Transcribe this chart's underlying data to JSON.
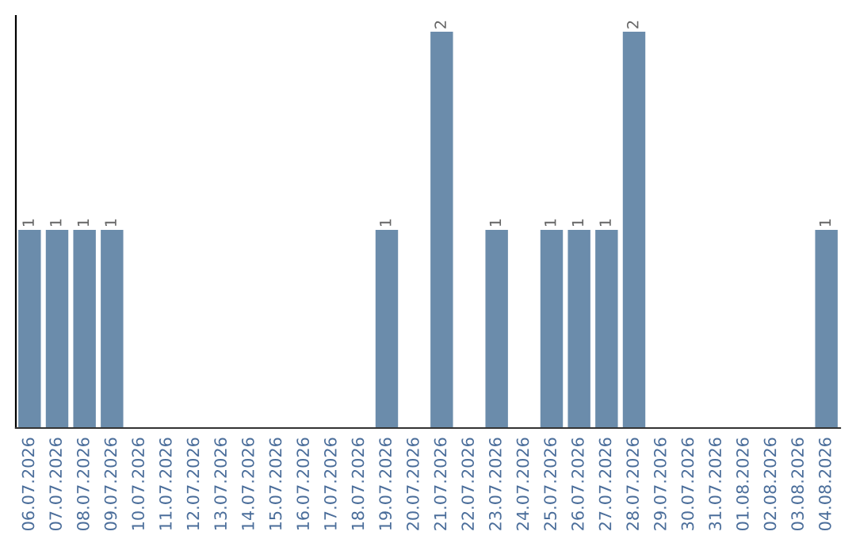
{
  "chart_data": {
    "type": "bar",
    "categories": [
      "06.07.2026",
      "07.07.2026",
      "08.07.2026",
      "09.07.2026",
      "10.07.2026",
      "11.07.2026",
      "12.07.2026",
      "13.07.2026",
      "14.07.2026",
      "15.07.2026",
      "16.07.2026",
      "17.07.2026",
      "18.07.2026",
      "19.07.2026",
      "20.07.2026",
      "21.07.2026",
      "22.07.2026",
      "23.07.2026",
      "24.07.2026",
      "25.07.2026",
      "26.07.2026",
      "27.07.2026",
      "28.07.2026",
      "29.07.2026",
      "30.07.2026",
      "31.07.2026",
      "01.08.2026",
      "02.08.2026",
      "03.08.2026",
      "04.08.2026"
    ],
    "values": [
      1,
      1,
      1,
      1,
      0,
      0,
      0,
      0,
      0,
      0,
      0,
      0,
      0,
      1,
      0,
      2,
      0,
      1,
      0,
      1,
      1,
      1,
      2,
      0,
      0,
      0,
      0,
      0,
      0,
      1
    ],
    "value_labels": [
      "1",
      "1",
      "1",
      "1",
      null,
      null,
      null,
      null,
      null,
      null,
      null,
      null,
      null,
      "1",
      null,
      "2",
      null,
      "1",
      null,
      "1",
      "1",
      "1",
      "2",
      null,
      null,
      null,
      null,
      null,
      null,
      "1"
    ],
    "color": "#6b8cab",
    "ylim": [
      0,
      2.08
    ],
    "tick_labels": "x",
    "grid": false,
    "legend": false
  }
}
